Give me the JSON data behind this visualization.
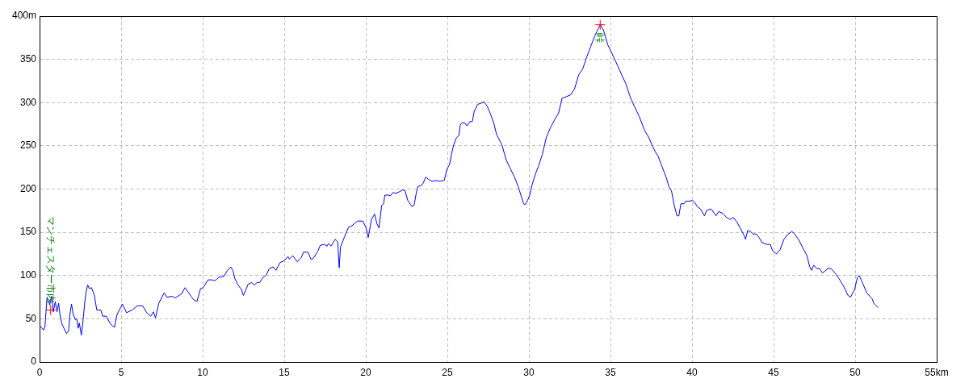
{
  "chart_data": {
    "type": "line",
    "xlim": [
      0,
      55
    ],
    "ylim": [
      0,
      400
    ],
    "xticks": [
      0,
      5,
      10,
      15,
      20,
      25,
      30,
      35,
      40,
      45,
      50,
      {
        "value": 55,
        "label": "55km"
      }
    ],
    "yticks": [
      0,
      50,
      100,
      150,
      200,
      250,
      300,
      350,
      {
        "value": 400,
        "label": "400m"
      }
    ],
    "grid": true,
    "series": [
      {
        "type": "line",
        "color": "#0000ff",
        "marker": "none",
        "x": [
          0,
          0.25,
          0.33,
          0.46,
          0.57,
          0.62,
          0.74,
          0.84,
          0.96,
          1.07,
          1.17,
          1.25,
          1.37,
          1.65,
          1.78,
          1.86,
          1.96,
          2.06,
          2.19,
          2.28,
          2.36,
          2.44,
          2.56,
          2.64,
          2.77,
          2.85,
          2.95,
          3.05,
          3.18,
          3.35,
          3.51,
          3.76,
          3.87,
          4.09,
          4.34,
          4.59,
          4.75,
          5.08,
          5.33,
          5.66,
          5.99,
          6.32,
          6.57,
          6.82,
          6.98,
          7.11,
          7.31,
          7.64,
          7.8,
          8.13,
          8.3,
          8.54,
          8.71,
          8.92,
          9.29,
          9.45,
          9.65,
          9.87,
          10.03,
          10.33,
          10.58,
          10.66,
          10.82,
          11.0,
          11.3,
          11.52,
          11.72,
          11.85,
          11.96,
          12.17,
          12.37,
          12.5,
          12.79,
          13.0,
          13.17,
          13.33,
          13.5,
          13.66,
          13.91,
          14.08,
          14.32,
          14.49,
          14.74,
          14.99,
          15.23,
          15.31,
          15.52,
          15.8,
          16.05,
          16.18,
          16.46,
          16.63,
          16.75,
          17.05,
          17.21,
          17.46,
          17.62,
          17.71,
          17.87,
          18.12,
          18.28,
          18.37,
          18.45,
          18.7,
          18.94,
          19.11,
          19.36,
          19.49,
          19.82,
          20.02,
          20.15,
          20.35,
          20.54,
          20.68,
          20.81,
          20.97,
          21.09,
          21.17,
          21.42,
          21.5,
          21.66,
          21.83,
          22.08,
          22.24,
          22.41,
          22.57,
          22.82,
          22.96,
          23.07,
          23.19,
          23.4,
          23.52,
          23.68,
          23.85,
          24.06,
          24.28,
          24.51,
          24.81,
          24.97,
          25.13,
          25.25,
          25.38,
          25.55,
          25.71,
          25.79,
          25.92,
          26.09,
          26.2,
          26.37,
          26.53,
          26.65,
          26.86,
          27.03,
          27.24,
          27.44,
          27.64,
          27.85,
          28.02,
          28.35,
          28.6,
          28.85,
          29.09,
          29.34,
          29.51,
          29.67,
          29.78,
          29.92,
          30.05,
          30.21,
          30.41,
          30.58,
          30.82,
          31.07,
          31.32,
          31.57,
          31.82,
          32.03,
          32.31,
          32.56,
          32.8,
          33.05,
          33.3,
          33.55,
          33.79,
          34.04,
          34.21,
          34.37,
          34.57,
          34.83,
          35.06,
          35.36,
          35.69,
          35.94,
          36.18,
          36.43,
          36.76,
          37.09,
          37.34,
          37.59,
          37.75,
          37.92,
          38.16,
          38.41,
          38.58,
          38.74,
          38.91,
          39.08,
          39.19,
          39.32,
          39.52,
          39.62,
          39.85,
          40.02,
          40.15,
          40.31,
          40.51,
          40.76,
          40.89,
          41.1,
          41.22,
          41.47,
          41.63,
          41.88,
          42.13,
          42.32,
          42.54,
          42.75,
          42.95,
          43.15,
          43.28,
          43.41,
          43.58,
          43.74,
          43.94,
          44.11,
          44.3,
          44.6,
          44.8,
          44.93,
          45.18,
          45.4,
          45.64,
          45.84,
          46.12,
          46.29,
          46.55,
          46.79,
          47.05,
          47.2,
          47.33,
          47.46,
          47.66,
          47.83,
          47.99,
          48.15,
          48.32,
          48.53,
          48.81,
          49.06,
          49.31,
          49.56,
          49.72,
          49.97,
          50.14,
          50.25,
          50.42,
          50.71,
          51.04,
          51.17,
          51.4
        ],
        "values": [
          42,
          37,
          41,
          75,
          70,
          66,
          76,
          58,
          70,
          58,
          68,
          55,
          44,
          33,
          36,
          55,
          67,
          55,
          49,
          50,
          39,
          45,
          31,
          43,
          69,
          81,
          89,
          85,
          86,
          78,
          60,
          60,
          53,
          53,
          44,
          40,
          55,
          67,
          57,
          60,
          65,
          65,
          57,
          53,
          58,
          51,
          68,
          80,
          75,
          76,
          74,
          77,
          79,
          86,
          76,
          72,
          70,
          85,
          86,
          95,
          95,
          94,
          95,
          98,
          99,
          106,
          110,
          106,
          97,
          89,
          84,
          77,
          90,
          92,
          89,
          92,
          92,
          97,
          101,
          108,
          110,
          106,
          115,
          117,
          122,
          119,
          123,
          116,
          121,
          127,
          127,
          119,
          119,
          128,
          135,
          136,
          134,
          137,
          134,
          142,
          139,
          109,
          133,
          145,
          156,
          157,
          161,
          163,
          163,
          155,
          144,
          165,
          171,
          160,
          155,
          181,
          183,
          193,
          193,
          192,
          196,
          195,
          197,
          199,
          198,
          187,
          180,
          181,
          193,
          203,
          204,
          207,
          214,
          211,
          209,
          210,
          209,
          210,
          223,
          228,
          240,
          251,
          259,
          262,
          274,
          277,
          276,
          273,
          278,
          278,
          290,
          298,
          299,
          301,
          296,
          287,
          276,
          263,
          251,
          234,
          224,
          215,
          203,
          193,
          183,
          182,
          187,
          193,
          206,
          218,
          226,
          240,
          260,
          271,
          280,
          288,
          305,
          307,
          309,
          316,
          332,
          339,
          353,
          365,
          377,
          384,
          390,
          384,
          367,
          358,
          346,
          332,
          322,
          308,
          297,
          284,
          268,
          260,
          249,
          243,
          238,
          226,
          214,
          203,
          198,
          181,
          169,
          169,
          183,
          183,
          186,
          186,
          187,
          185,
          180,
          177,
          169,
          175,
          177,
          176,
          169,
          174,
          172,
          167,
          165,
          167,
          162,
          155,
          148,
          142,
          152,
          151,
          148,
          148,
          144,
          138,
          136,
          136,
          129,
          125,
          130,
          142,
          147,
          151,
          148,
          141,
          132,
          123,
          111,
          106,
          112,
          108,
          108,
          103,
          105,
          108,
          108,
          102,
          95,
          87,
          77,
          75,
          84,
          98,
          100,
          93,
          80,
          73,
          67,
          63
        ]
      },
      {
        "type": "scatter",
        "color": "#ff0000",
        "marker": "cross",
        "x": [
          0.68,
          34.37
        ],
        "values": [
          60,
          390
        ]
      }
    ],
    "annotations": [
      {
        "text": "マンチェスター市内",
        "x": 0.68,
        "y": 60
      },
      {
        "text": "峠",
        "x": 34.37,
        "y": 390
      }
    ]
  }
}
